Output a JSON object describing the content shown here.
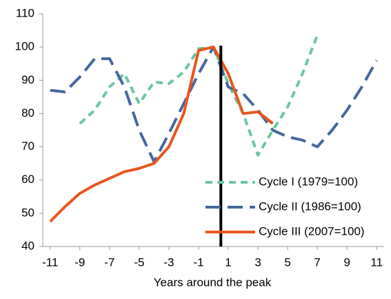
{
  "chart_data": {
    "type": "line",
    "x_label": "Years around the peak",
    "x": [
      -11,
      -10,
      -9,
      -8,
      -7,
      -6,
      -5,
      -4,
      -3,
      -2,
      -1,
      0,
      1,
      2,
      3,
      4,
      5,
      6,
      7,
      8,
      9,
      10,
      11
    ],
    "series": [
      {
        "name": "Cycle I (1979=100)",
        "color": "#6cc6a4",
        "dash": "10,7",
        "values": [
          null,
          null,
          77,
          81,
          88,
          92,
          83,
          89.5,
          89,
          92.5,
          99.5,
          100,
          89,
          80,
          67.5,
          75,
          82,
          92,
          103.5,
          null,
          null,
          null,
          null
        ]
      },
      {
        "name": "Cycle II (1986=100)",
        "color": "#44689f",
        "dash": "22,10",
        "values": [
          87,
          86.5,
          91,
          96.5,
          96.5,
          88,
          75,
          65.5,
          74,
          83,
          92,
          100,
          88,
          86,
          81,
          75,
          73,
          72,
          70,
          75,
          81,
          88,
          96
        ]
      },
      {
        "name": "Cycle III (2007=100)",
        "color": "#e8561e",
        "dash": "",
        "values": [
          47.5,
          52,
          56,
          58.5,
          60.5,
          62.5,
          63.5,
          65,
          70,
          80,
          99,
          100,
          92,
          80,
          80.5,
          77,
          null,
          null,
          null,
          null,
          null,
          null,
          null
        ]
      }
    ],
    "vline": 0.5,
    "xlim": [
      -11.5,
      11.5
    ],
    "xticks": [
      -11,
      -9,
      -7,
      -5,
      -3,
      -1,
      1,
      3,
      5,
      7,
      9,
      11
    ],
    "ylim": [
      40,
      110
    ],
    "yticks": [
      40,
      50,
      60,
      70,
      80,
      90,
      100,
      110
    ],
    "grid": false,
    "legend": "lower-right"
  }
}
